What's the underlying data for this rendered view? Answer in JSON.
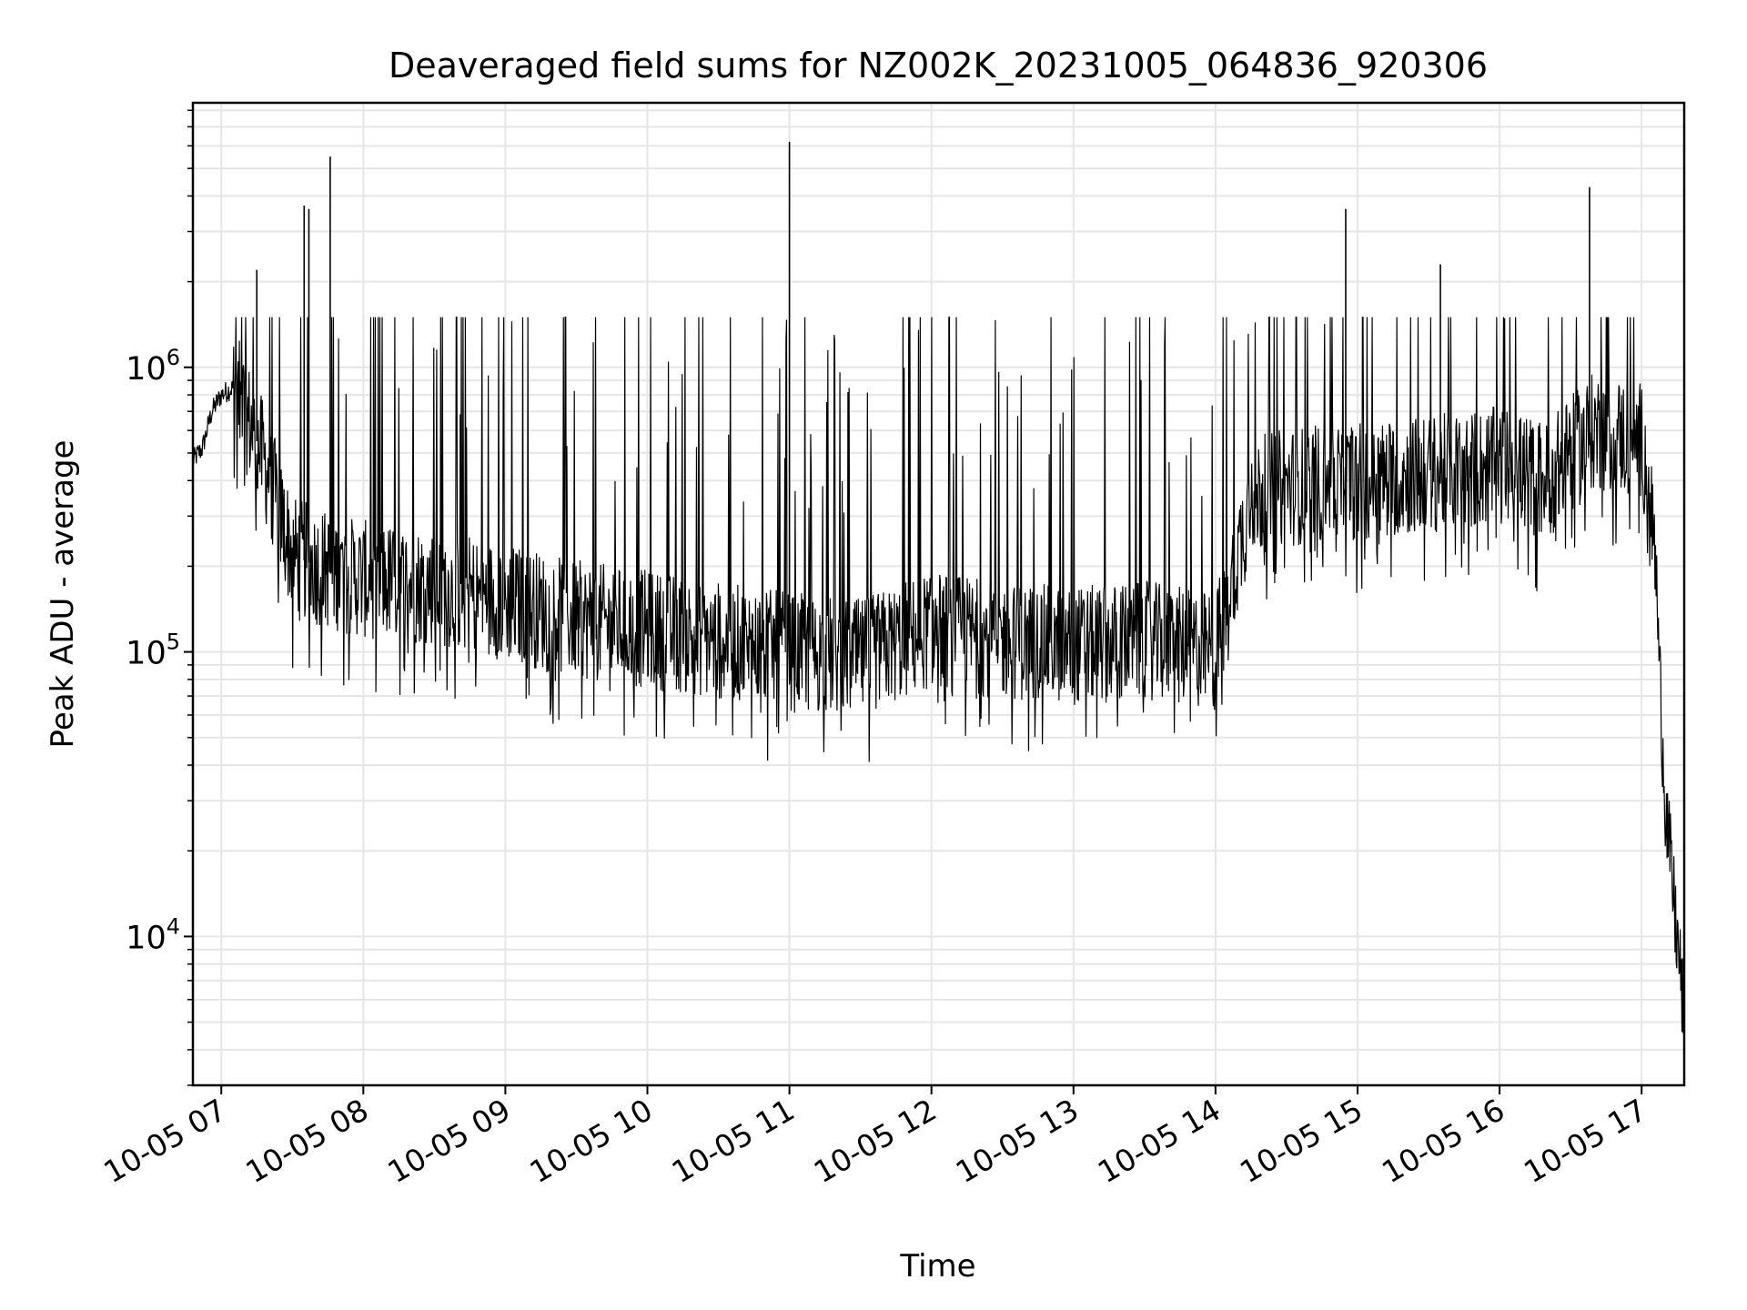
{
  "chart_data": {
    "type": "line",
    "title": "Deaveraged field sums for NZ002K_20231005_064836_920306",
    "xlabel": "Time",
    "ylabel": "Peak ADU - average",
    "yscale": "log",
    "xlim": [
      "2023-10-05 06:48",
      "2023-10-05 17:18"
    ],
    "ylim": [
      3000,
      8500000
    ],
    "xticks": [
      "2023-10-05 07:00",
      "2023-10-05 08:00",
      "2023-10-05 09:00",
      "2023-10-05 10:00",
      "2023-10-05 11:00",
      "2023-10-05 12:00",
      "2023-10-05 13:00",
      "2023-10-05 14:00",
      "2023-10-05 15:00",
      "2023-10-05 16:00",
      "2023-10-05 17:00"
    ],
    "xtick_labels": [
      "10-05 07",
      "10-05 08",
      "10-05 09",
      "10-05 10",
      "10-05 11",
      "10-05 12",
      "10-05 13",
      "10-05 14",
      "10-05 15",
      "10-05 16",
      "10-05 17"
    ],
    "ytick_values": [
      10000,
      100000,
      1000000
    ],
    "ytick_labels": [
      {
        "base": "10",
        "exp": "4"
      },
      {
        "base": "10",
        "exp": "5"
      },
      {
        "base": "10",
        "exp": "6"
      }
    ],
    "grid": true,
    "line_color": "#000000",
    "grid_color": "#e6e6e6",
    "series": [
      {
        "points": [
          [
            "2023-10-05 06:48",
            470000
          ],
          [
            "2023-10-05 06:52",
            520000
          ],
          [
            "2023-10-05 06:56",
            700000
          ],
          [
            "2023-10-05 07:00",
            800000
          ],
          [
            "2023-10-05 07:05",
            850000
          ],
          [
            "2023-10-05 07:10",
            700000
          ],
          [
            "2023-10-05 07:15",
            550000
          ],
          [
            "2023-10-05 07:20",
            420000
          ],
          [
            "2023-10-05 07:25",
            300000
          ],
          [
            "2023-10-05 07:30",
            220000
          ],
          [
            "2023-10-05 07:40",
            200000
          ],
          [
            "2023-10-05 08:00",
            180000
          ],
          [
            "2023-10-05 08:30",
            170000
          ],
          [
            "2023-10-05 09:00",
            150000
          ],
          [
            "2023-10-05 09:30",
            130000
          ],
          [
            "2023-10-05 10:00",
            120000
          ],
          [
            "2023-10-05 10:30",
            110000
          ],
          [
            "2023-10-05 11:00",
            100000
          ],
          [
            "2023-10-05 11:30",
            95000
          ],
          [
            "2023-10-05 12:00",
            120000
          ],
          [
            "2023-10-05 12:30",
            110000
          ],
          [
            "2023-10-05 13:00",
            105000
          ],
          [
            "2023-10-05 13:30",
            110000
          ],
          [
            "2023-10-05 14:00",
            100000
          ],
          [
            "2023-10-05 14:15",
            350000
          ],
          [
            "2023-10-05 14:30",
            380000
          ],
          [
            "2023-10-05 15:00",
            400000
          ],
          [
            "2023-10-05 15:30",
            420000
          ],
          [
            "2023-10-05 16:00",
            450000
          ],
          [
            "2023-10-05 16:20",
            400000
          ],
          [
            "2023-10-05 16:40",
            600000
          ],
          [
            "2023-10-05 17:00",
            550000
          ],
          [
            "2023-10-05 17:03",
            400000
          ],
          [
            "2023-10-05 17:06",
            200000
          ],
          [
            "2023-10-05 17:08",
            70000
          ],
          [
            "2023-10-05 17:10",
            30000
          ],
          [
            "2023-10-05 17:13",
            15000
          ],
          [
            "2023-10-05 17:16",
            8000
          ],
          [
            "2023-10-05 17:18",
            5000
          ]
        ],
        "upper_spikes": [
          [
            "2023-10-05 07:15",
            2200000
          ],
          [
            "2023-10-05 07:35",
            3700000
          ],
          [
            "2023-10-05 07:37",
            3600000
          ],
          [
            "2023-10-05 07:46",
            5500000
          ],
          [
            "2023-10-05 11:00",
            6200000
          ],
          [
            "2023-10-05 14:55",
            3600000
          ],
          [
            "2023-10-05 15:35",
            2300000
          ],
          [
            "2023-10-05 16:38",
            4300000
          ]
        ]
      }
    ]
  }
}
